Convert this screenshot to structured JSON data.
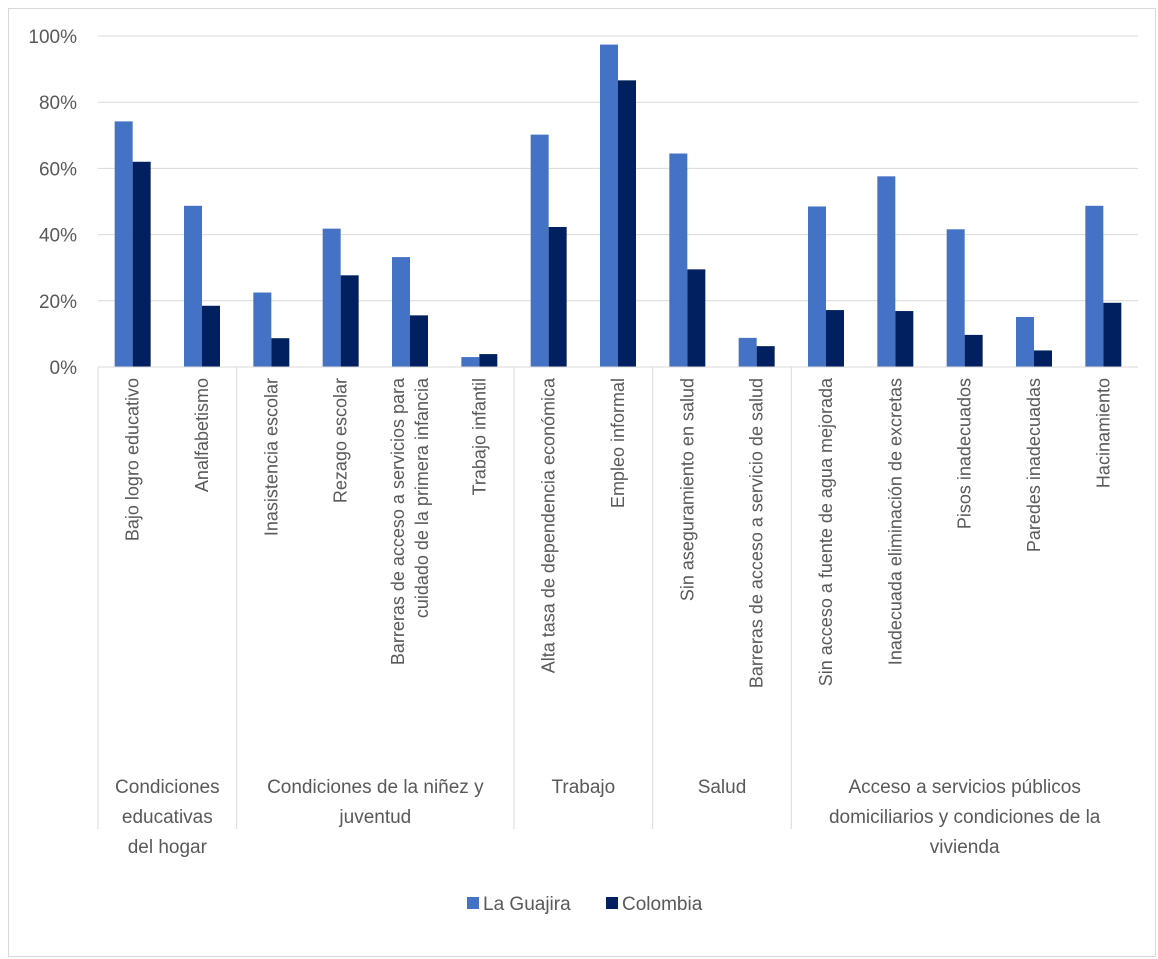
{
  "chart_data": {
    "type": "bar",
    "title": "",
    "xlabel": "",
    "ylabel": "",
    "ylim": [
      0,
      1
    ],
    "yticks": [
      "0%",
      "20%",
      "40%",
      "60%",
      "80%",
      "100%"
    ],
    "grid": "horizontal",
    "legend_position": "bottom",
    "categories": [
      "Bajo logro educativo",
      "Analfabetismo",
      "Inasistencia escolar",
      "Rezago escolar",
      "Barreras de acceso a servicios para cuidado de la primera infancia",
      "Trabajo infantil",
      "Alta tasa de dependencia económica",
      "Empleo informal",
      "Sin aseguramiento en salud",
      "Barreras de acceso a servicio de salud",
      "Sin acceso a fuente de agua mejorada",
      "Inadecuada eliminación de excretas",
      "Pisos inadecuados",
      "Paredes inadecuadas",
      "Hacinamiento"
    ],
    "category_label_lines": [
      [
        "Bajo logro educativo"
      ],
      [
        "Analfabetismo"
      ],
      [
        "Inasistencia escolar"
      ],
      [
        "Rezago escolar"
      ],
      [
        "Barreras de acceso a servicios para",
        "cuidado de la primera infancia"
      ],
      [
        "Trabajo infantil"
      ],
      [
        "Alta tasa de dependencia económica"
      ],
      [
        "Empleo informal"
      ],
      [
        "Sin aseguramiento en salud"
      ],
      [
        "Barreras de acceso a servicio de salud"
      ],
      [
        "Sin acceso a fuente de agua mejorada"
      ],
      [
        "Inadecuada eliminación de excretas"
      ],
      [
        "Pisos inadecuados"
      ],
      [
        "Paredes inadecuadas"
      ],
      [
        "Hacinamiento"
      ]
    ],
    "groups": [
      {
        "lines": [
          "Condiciones",
          "educativas",
          "del hogar"
        ],
        "start": 0,
        "end": 1
      },
      {
        "lines": [
          "Condiciones de la niñez y",
          "juventud"
        ],
        "start": 2,
        "end": 5
      },
      {
        "lines": [
          "Trabajo"
        ],
        "start": 6,
        "end": 7
      },
      {
        "lines": [
          "Salud"
        ],
        "start": 8,
        "end": 9
      },
      {
        "lines": [
          "Acceso a servicios públicos",
          "domiciliarios y condiciones de la",
          "vivienda"
        ],
        "start": 10,
        "end": 14
      }
    ],
    "series": [
      {
        "name": "La Guajira",
        "color": "#4472c4",
        "values": [
          0.742,
          0.487,
          0.225,
          0.418,
          0.332,
          0.03,
          0.702,
          0.974,
          0.645,
          0.088,
          0.485,
          0.576,
          0.416,
          0.151,
          0.487
        ]
      },
      {
        "name": "Colombia",
        "color": "#002060",
        "values": [
          0.62,
          0.185,
          0.087,
          0.277,
          0.156,
          0.039,
          0.423,
          0.866,
          0.295,
          0.063,
          0.172,
          0.169,
          0.097,
          0.05,
          0.194
        ]
      }
    ]
  }
}
